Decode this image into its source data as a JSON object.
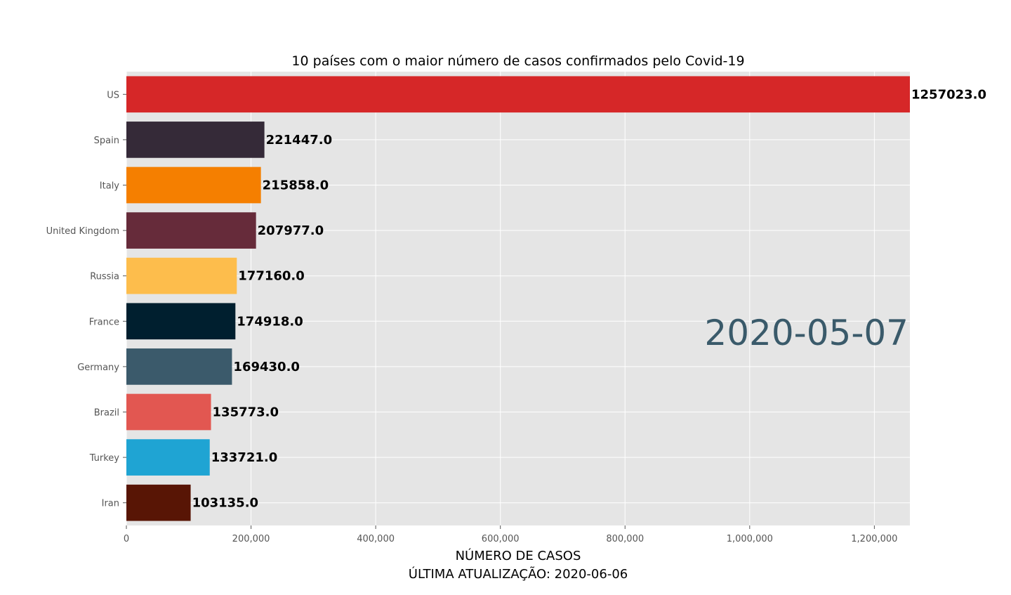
{
  "chart_data": {
    "type": "bar",
    "orientation": "horizontal",
    "title": "10 países com o maior número de casos confirmados pelo Covid-19",
    "xlabel": "NÚMERO DE CASOS",
    "xlabel2": "ÚLTIMA ATUALIZAÇÃO: 2020-06-06",
    "date_label": "2020-05-07",
    "xlim": [
      0,
      1257023
    ],
    "grid": true,
    "x_ticks": [
      {
        "value": 0,
        "label": "0"
      },
      {
        "value": 200000,
        "label": "200,000"
      },
      {
        "value": 400000,
        "label": "400,000"
      },
      {
        "value": 600000,
        "label": "600,000"
      },
      {
        "value": 800000,
        "label": "800,000"
      },
      {
        "value": 1000000,
        "label": "1,000,000"
      },
      {
        "value": 1200000,
        "label": "1,200,000"
      }
    ],
    "categories": [
      "US",
      "Spain",
      "Italy",
      "United Kingdom",
      "Russia",
      "France",
      "Germany",
      "Brazil",
      "Turkey",
      "Iran"
    ],
    "values": [
      1257023,
      221447,
      215858,
      207977,
      177160,
      174918,
      169430,
      135773,
      133721,
      103135
    ],
    "value_labels": [
      "1257023.0",
      "221447.0",
      "215858.0",
      "207977.0",
      "177160.0",
      "174918.0",
      "169430.0",
      "135773.0",
      "133721.0",
      "103135.0"
    ],
    "colors": [
      "#d62728",
      "#352a38",
      "#f57f00",
      "#662b3a",
      "#fdbd4c",
      "#001f2f",
      "#3b5a6b",
      "#e25751",
      "#1fa4d3",
      "#581505"
    ],
    "background_color": "#e5e5e5",
    "grid_color": "#ffffff"
  }
}
